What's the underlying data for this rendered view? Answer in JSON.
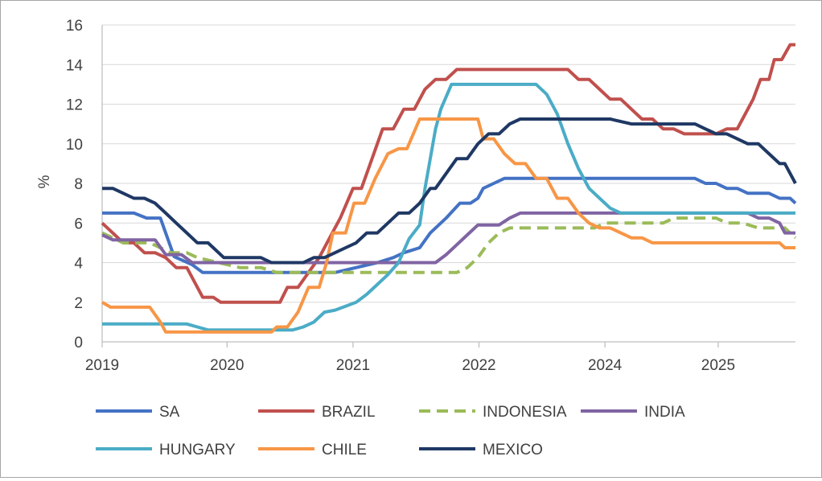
{
  "chart_data": {
    "type": "line",
    "title": "",
    "xlabel": "",
    "ylabel": "%",
    "ylim": [
      0,
      16
    ],
    "xlim": [
      2019.0,
      2025.55
    ],
    "y_ticks": [
      0,
      2,
      4,
      6,
      8,
      10,
      12,
      14,
      16
    ],
    "x_ticks": [
      {
        "value": 2019.0,
        "label": "2019"
      },
      {
        "value": 2020.18,
        "label": "2020"
      },
      {
        "value": 2021.37,
        "label": "2021"
      },
      {
        "value": 2022.56,
        "label": "2022"
      },
      {
        "value": 2023.75,
        "label": "2024"
      },
      {
        "value": 2024.82,
        "label": "2025"
      }
    ],
    "grid": "horizontal",
    "legend_position": "bottom",
    "series": [
      {
        "name": "SA",
        "color": "#4472c4",
        "dash": false,
        "points": [
          [
            2019.0,
            6.5
          ],
          [
            2019.3,
            6.5
          ],
          [
            2019.42,
            6.25
          ],
          [
            2019.55,
            6.25
          ],
          [
            2019.68,
            4.3
          ],
          [
            2019.85,
            3.9
          ],
          [
            2019.95,
            3.5
          ],
          [
            2021.2,
            3.5
          ],
          [
            2021.6,
            4.0
          ],
          [
            2021.75,
            4.25
          ],
          [
            2021.85,
            4.5
          ],
          [
            2022.0,
            4.75
          ],
          [
            2022.1,
            5.5
          ],
          [
            2022.25,
            6.25
          ],
          [
            2022.38,
            7.0
          ],
          [
            2022.48,
            7.0
          ],
          [
            2022.55,
            7.25
          ],
          [
            2022.6,
            7.75
          ],
          [
            2022.7,
            8.0
          ],
          [
            2022.8,
            8.25
          ],
          [
            2023.2,
            8.25
          ],
          [
            2024.6,
            8.25
          ],
          [
            2024.7,
            8.0
          ],
          [
            2024.8,
            8.0
          ],
          [
            2024.9,
            7.75
          ],
          [
            2025.0,
            7.75
          ],
          [
            2025.1,
            7.5
          ],
          [
            2025.3,
            7.5
          ],
          [
            2025.4,
            7.25
          ],
          [
            2025.5,
            7.25
          ],
          [
            2025.55,
            7.0
          ]
        ]
      },
      {
        "name": "BRAZIL",
        "color": "#c0504d",
        "dash": false,
        "points": [
          [
            2019.0,
            6.0
          ],
          [
            2019.1,
            5.5
          ],
          [
            2019.2,
            5.0
          ],
          [
            2019.3,
            5.0
          ],
          [
            2019.4,
            4.5
          ],
          [
            2019.5,
            4.5
          ],
          [
            2019.6,
            4.25
          ],
          [
            2019.7,
            3.75
          ],
          [
            2019.8,
            3.75
          ],
          [
            2019.95,
            2.25
          ],
          [
            2020.05,
            2.25
          ],
          [
            2020.12,
            2.0
          ],
          [
            2020.3,
            2.0
          ],
          [
            2020.4,
            2.0
          ],
          [
            2020.6,
            2.0
          ],
          [
            2020.68,
            2.0
          ],
          [
            2020.75,
            2.75
          ],
          [
            2020.85,
            2.75
          ],
          [
            2020.95,
            3.5
          ],
          [
            2021.05,
            4.25
          ],
          [
            2021.15,
            5.25
          ],
          [
            2021.25,
            6.25
          ],
          [
            2021.37,
            7.75
          ],
          [
            2021.45,
            7.75
          ],
          [
            2021.55,
            9.25
          ],
          [
            2021.65,
            10.75
          ],
          [
            2021.75,
            10.75
          ],
          [
            2021.85,
            11.75
          ],
          [
            2021.95,
            11.75
          ],
          [
            2022.05,
            12.75
          ],
          [
            2022.15,
            13.25
          ],
          [
            2022.25,
            13.25
          ],
          [
            2022.35,
            13.75
          ],
          [
            2023.4,
            13.75
          ],
          [
            2023.5,
            13.25
          ],
          [
            2023.6,
            13.25
          ],
          [
            2023.7,
            12.75
          ],
          [
            2023.8,
            12.25
          ],
          [
            2023.9,
            12.25
          ],
          [
            2024.0,
            11.75
          ],
          [
            2024.1,
            11.25
          ],
          [
            2024.2,
            11.25
          ],
          [
            2024.3,
            10.75
          ],
          [
            2024.4,
            10.75
          ],
          [
            2024.5,
            10.5
          ],
          [
            2024.8,
            10.5
          ],
          [
            2024.9,
            10.75
          ],
          [
            2025.0,
            10.75
          ],
          [
            2025.05,
            11.25
          ],
          [
            2025.15,
            12.25
          ],
          [
            2025.22,
            13.25
          ],
          [
            2025.3,
            13.25
          ],
          [
            2025.35,
            14.25
          ],
          [
            2025.42,
            14.25
          ],
          [
            2025.5,
            15.0
          ],
          [
            2025.55,
            15.0
          ]
        ]
      },
      {
        "name": "INDONESIA",
        "color": "#9bbb59",
        "dash": true,
        "points": [
          [
            2019.0,
            5.5
          ],
          [
            2019.2,
            5.0
          ],
          [
            2019.45,
            5.0
          ],
          [
            2019.55,
            4.75
          ],
          [
            2019.65,
            4.5
          ],
          [
            2019.8,
            4.5
          ],
          [
            2019.9,
            4.25
          ],
          [
            2020.1,
            4.0
          ],
          [
            2020.3,
            3.75
          ],
          [
            2020.5,
            3.75
          ],
          [
            2020.65,
            3.5
          ],
          [
            2022.35,
            3.5
          ],
          [
            2022.45,
            3.75
          ],
          [
            2022.55,
            4.25
          ],
          [
            2022.65,
            5.0
          ],
          [
            2022.75,
            5.5
          ],
          [
            2022.85,
            5.75
          ],
          [
            2023.5,
            5.75
          ],
          [
            2023.65,
            5.75
          ],
          [
            2023.75,
            6.0
          ],
          [
            2024.3,
            6.0
          ],
          [
            2024.4,
            6.25
          ],
          [
            2024.8,
            6.25
          ],
          [
            2024.9,
            6.0
          ],
          [
            2025.05,
            6.0
          ],
          [
            2025.2,
            5.75
          ],
          [
            2025.45,
            5.75
          ],
          [
            2025.5,
            5.5
          ],
          [
            2025.55,
            5.25
          ]
        ]
      },
      {
        "name": "INDIA",
        "color": "#8064a2",
        "dash": false,
        "points": [
          [
            2019.0,
            5.4
          ],
          [
            2019.1,
            5.15
          ],
          [
            2019.5,
            5.15
          ],
          [
            2019.6,
            4.4
          ],
          [
            2019.75,
            4.4
          ],
          [
            2019.85,
            4.0
          ],
          [
            2020.3,
            4.0
          ],
          [
            2020.45,
            4.0
          ],
          [
            2021.5,
            4.0
          ],
          [
            2022.15,
            4.0
          ],
          [
            2022.25,
            4.4
          ],
          [
            2022.35,
            4.9
          ],
          [
            2022.45,
            5.4
          ],
          [
            2022.55,
            5.9
          ],
          [
            2022.75,
            5.9
          ],
          [
            2022.85,
            6.25
          ],
          [
            2022.95,
            6.5
          ],
          [
            2023.1,
            6.5
          ],
          [
            2024.8,
            6.5
          ],
          [
            2024.95,
            6.5
          ],
          [
            2025.1,
            6.5
          ],
          [
            2025.2,
            6.25
          ],
          [
            2025.3,
            6.25
          ],
          [
            2025.4,
            6.0
          ],
          [
            2025.45,
            5.5
          ],
          [
            2025.55,
            5.5
          ]
        ]
      },
      {
        "name": "HUNGARY",
        "color": "#4bacc6",
        "dash": false,
        "points": [
          [
            2019.0,
            0.9
          ],
          [
            2019.8,
            0.9
          ],
          [
            2019.9,
            0.75
          ],
          [
            2020.0,
            0.6
          ],
          [
            2020.8,
            0.6
          ],
          [
            2020.9,
            0.75
          ],
          [
            2021.0,
            1.0
          ],
          [
            2021.1,
            1.5
          ],
          [
            2021.2,
            1.6
          ],
          [
            2021.3,
            1.8
          ],
          [
            2021.4,
            2.0
          ],
          [
            2021.5,
            2.4
          ],
          [
            2021.6,
            2.9
          ],
          [
            2021.7,
            3.4
          ],
          [
            2021.8,
            4.0
          ],
          [
            2021.9,
            5.2
          ],
          [
            2022.0,
            5.9
          ],
          [
            2022.05,
            7.75
          ],
          [
            2022.15,
            10.75
          ],
          [
            2022.2,
            11.75
          ],
          [
            2022.3,
            13.0
          ],
          [
            2023.0,
            13.0
          ],
          [
            2023.1,
            13.0
          ],
          [
            2023.2,
            12.5
          ],
          [
            2023.3,
            11.5
          ],
          [
            2023.4,
            10.0
          ],
          [
            2023.5,
            8.75
          ],
          [
            2023.6,
            7.75
          ],
          [
            2023.7,
            7.25
          ],
          [
            2023.8,
            6.75
          ],
          [
            2023.9,
            6.5
          ],
          [
            2025.55,
            6.5
          ]
        ]
      },
      {
        "name": "CHILE",
        "color": "#f79646",
        "dash": false,
        "points": [
          [
            2019.0,
            2.0
          ],
          [
            2019.08,
            1.75
          ],
          [
            2019.45,
            1.75
          ],
          [
            2019.55,
            1.0
          ],
          [
            2019.6,
            0.5
          ],
          [
            2020.5,
            0.5
          ],
          [
            2020.6,
            0.5
          ],
          [
            2020.65,
            0.75
          ],
          [
            2020.75,
            0.75
          ],
          [
            2020.85,
            1.5
          ],
          [
            2020.95,
            2.75
          ],
          [
            2021.05,
            2.75
          ],
          [
            2021.12,
            4.0
          ],
          [
            2021.18,
            5.5
          ],
          [
            2021.3,
            5.5
          ],
          [
            2021.38,
            7.0
          ],
          [
            2021.48,
            7.0
          ],
          [
            2021.58,
            8.25
          ],
          [
            2021.7,
            9.5
          ],
          [
            2021.8,
            9.75
          ],
          [
            2021.88,
            9.75
          ],
          [
            2022.0,
            11.25
          ],
          [
            2022.45,
            11.25
          ],
          [
            2022.55,
            11.25
          ],
          [
            2022.6,
            10.25
          ],
          [
            2022.7,
            10.25
          ],
          [
            2022.8,
            9.5
          ],
          [
            2022.9,
            9.0
          ],
          [
            2023.0,
            9.0
          ],
          [
            2023.1,
            8.25
          ],
          [
            2023.2,
            8.25
          ],
          [
            2023.3,
            7.25
          ],
          [
            2023.4,
            7.25
          ],
          [
            2023.5,
            6.5
          ],
          [
            2023.6,
            6.0
          ],
          [
            2023.7,
            5.75
          ],
          [
            2023.8,
            5.75
          ],
          [
            2023.9,
            5.5
          ],
          [
            2024.0,
            5.25
          ],
          [
            2024.1,
            5.25
          ],
          [
            2024.2,
            5.0
          ],
          [
            2024.9,
            5.0
          ],
          [
            2025.0,
            5.0
          ],
          [
            2025.1,
            5.0
          ],
          [
            2025.3,
            5.0
          ],
          [
            2025.4,
            5.0
          ],
          [
            2025.45,
            4.75
          ],
          [
            2025.55,
            4.75
          ]
        ]
      },
      {
        "name": "MEXICO",
        "color": "#1f3864",
        "dash": false,
        "points": [
          [
            2019.0,
            7.75
          ],
          [
            2019.1,
            7.75
          ],
          [
            2019.2,
            7.5
          ],
          [
            2019.3,
            7.25
          ],
          [
            2019.4,
            7.25
          ],
          [
            2019.5,
            7.0
          ],
          [
            2019.6,
            6.5
          ],
          [
            2019.7,
            6.0
          ],
          [
            2019.8,
            5.5
          ],
          [
            2019.9,
            5.0
          ],
          [
            2020.0,
            5.0
          ],
          [
            2020.05,
            4.75
          ],
          [
            2020.15,
            4.25
          ],
          [
            2020.25,
            4.25
          ],
          [
            2020.5,
            4.25
          ],
          [
            2020.6,
            4.0
          ],
          [
            2020.9,
            4.0
          ],
          [
            2021.0,
            4.25
          ],
          [
            2021.1,
            4.25
          ],
          [
            2021.2,
            4.5
          ],
          [
            2021.3,
            4.75
          ],
          [
            2021.4,
            5.0
          ],
          [
            2021.5,
            5.5
          ],
          [
            2021.6,
            5.5
          ],
          [
            2021.7,
            6.0
          ],
          [
            2021.8,
            6.5
          ],
          [
            2021.9,
            6.5
          ],
          [
            2022.0,
            7.0
          ],
          [
            2022.1,
            7.75
          ],
          [
            2022.15,
            7.75
          ],
          [
            2022.25,
            8.5
          ],
          [
            2022.35,
            9.25
          ],
          [
            2022.45,
            9.25
          ],
          [
            2022.55,
            10.0
          ],
          [
            2022.65,
            10.5
          ],
          [
            2022.75,
            10.5
          ],
          [
            2022.85,
            11.0
          ],
          [
            2022.95,
            11.25
          ],
          [
            2023.6,
            11.25
          ],
          [
            2023.8,
            11.25
          ],
          [
            2024.0,
            11.0
          ],
          [
            2024.6,
            11.0
          ],
          [
            2024.7,
            10.75
          ],
          [
            2024.8,
            10.5
          ],
          [
            2024.9,
            10.5
          ],
          [
            2025.0,
            10.25
          ],
          [
            2025.1,
            10.0
          ],
          [
            2025.2,
            10.0
          ],
          [
            2025.3,
            9.5
          ],
          [
            2025.4,
            9.0
          ],
          [
            2025.45,
            9.0
          ],
          [
            2025.5,
            8.5
          ],
          [
            2025.55,
            8.0
          ]
        ]
      }
    ]
  }
}
